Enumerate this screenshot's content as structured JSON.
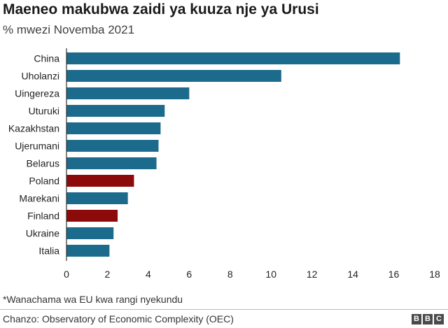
{
  "header": {
    "title": "Maeneo makubwa zaidi ya kuuza nje ya Urusi",
    "subtitle": "% mwezi Novemba 2021"
  },
  "footer": {
    "note": "*Wanachama wa EU kwa rangi nyekundu",
    "source": "Chanzo: Observatory of Economic Complexity (OEC)",
    "logo": [
      "B",
      "B",
      "C"
    ]
  },
  "colors": {
    "default_bar": "#1d6b8c",
    "eu_bar": "#8c0a0a"
  },
  "chart_data": {
    "type": "bar",
    "orientation": "horizontal",
    "title": "Maeneo makubwa zaidi ya kuuza nje ya Urusi",
    "subtitle": "% mwezi Novemba 2021",
    "categories": [
      "China",
      "Uholanzi",
      "Uingereza",
      "Uturuki",
      "Kazakhstan",
      "Ujerumani",
      "Belarus",
      "Poland",
      "Marekani",
      "Finland",
      "Ukraine",
      "Italia"
    ],
    "values": [
      16.3,
      10.5,
      6.0,
      4.8,
      4.6,
      4.5,
      4.4,
      3.3,
      3.0,
      2.5,
      2.3,
      2.1
    ],
    "eu_member": [
      false,
      false,
      false,
      false,
      false,
      false,
      false,
      true,
      false,
      true,
      false,
      false
    ],
    "xlim": [
      0,
      18
    ],
    "xticks": [
      "0",
      "2",
      "4",
      "6",
      "8",
      "10",
      "12",
      "14",
      "16",
      "18"
    ],
    "grid": false,
    "legend": "none"
  }
}
